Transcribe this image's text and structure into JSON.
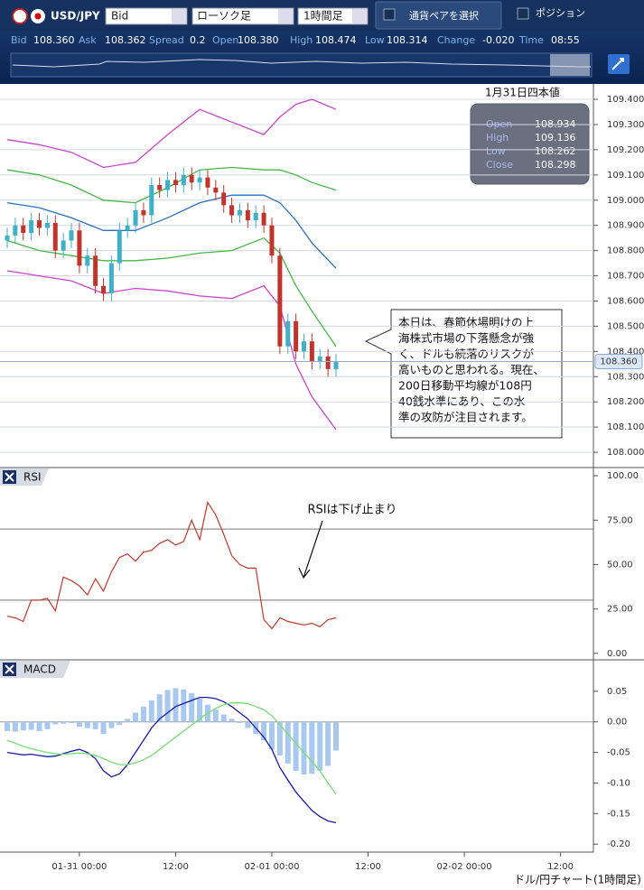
{
  "toolbar": {
    "pair": "USD/JPY",
    "price_type": "Bid",
    "chart_style": "ローソク足",
    "timeframe": "1時間足",
    "select_pair": "通貨ペアを選択",
    "position": "ポジション"
  },
  "quote": [
    {
      "label": "Bid",
      "value": "108.360"
    },
    {
      "label": "Ask",
      "value": "108.362"
    },
    {
      "label": "Spread",
      "value": "0.2"
    },
    {
      "label": "Open",
      "value": "108.380"
    },
    {
      "label": "High",
      "value": "108.474"
    },
    {
      "label": "Low",
      "value": "108.314"
    },
    {
      "label": "Change",
      "value": "-0.020"
    },
    {
      "label": "Time",
      "value": "08:55"
    }
  ],
  "ohlc_box": {
    "title": "1月31日四本値",
    "rows": [
      {
        "label": "Open",
        "value": "108.934"
      },
      {
        "label": "High",
        "value": "109.136"
      },
      {
        "label": "Low",
        "value": "108.262"
      },
      {
        "label": "Close",
        "value": "108.298"
      }
    ]
  },
  "annotation": {
    "lines": [
      "本日は、春節休場明けの上",
      "海株式市場の下落懸念が強",
      "く、ドルも続落のリスクが",
      "高いものと思われる。現在、",
      "200日移動平均線が108円",
      "40銭水準にあり、この水",
      "準の攻防が注目されます。"
    ]
  },
  "footer": "ドル/円チャート(1時間足)",
  "chart_data": [
    {
      "type": "candlestick",
      "grid": true,
      "xlim": [
        -9.9,
        64.1
      ],
      "ylim": [
        107.943,
        109.461
      ],
      "yticks": [
        {
          "value": 108.0,
          "label": "108.000"
        },
        {
          "value": 108.1,
          "label": "108.100"
        },
        {
          "value": 108.2,
          "label": "108.200"
        },
        {
          "value": 108.3,
          "label": "108.300"
        },
        {
          "value": 108.4,
          "label": "108.400"
        },
        {
          "value": 108.5,
          "label": "108.500"
        },
        {
          "value": 108.6,
          "label": "108.600"
        },
        {
          "value": 108.7,
          "label": "108.700"
        },
        {
          "value": 108.8,
          "label": "108.800"
        },
        {
          "value": 108.9,
          "label": "108.900"
        },
        {
          "value": 109.0,
          "label": "109.000"
        },
        {
          "value": 109.1,
          "label": "109.100"
        },
        {
          "value": 109.2,
          "label": "109.200"
        },
        {
          "value": 109.3,
          "label": "109.300"
        },
        {
          "value": 109.4,
          "label": "109.400"
        }
      ],
      "up_color": "#3fb0c8",
      "down_color": "#c0342c",
      "x": [
        -9,
        -8,
        -7,
        -6,
        -5,
        -4,
        -3,
        -2,
        -1,
        0,
        1,
        2,
        3,
        4,
        5,
        6,
        7,
        8,
        9,
        10,
        11,
        12,
        13,
        14,
        15,
        16,
        17,
        18,
        19,
        20,
        21,
        22,
        23,
        24,
        25,
        26,
        27,
        28,
        29,
        30,
        31,
        32
      ],
      "open": [
        108.84,
        108.86,
        108.9,
        108.87,
        108.92,
        108.89,
        108.91,
        108.8,
        108.84,
        108.88,
        108.74,
        108.78,
        108.66,
        108.63,
        108.75,
        108.88,
        108.9,
        108.96,
        108.94,
        109.06,
        109.04,
        109.08,
        109.06,
        109.1,
        109.07,
        109.09,
        109.05,
        109.03,
        108.98,
        108.94,
        108.96,
        108.92,
        108.95,
        108.9,
        108.78,
        108.42,
        108.52,
        108.4,
        108.44,
        108.36,
        108.38,
        108.33
      ],
      "high": [
        108.89,
        108.93,
        108.93,
        108.95,
        108.95,
        108.94,
        108.94,
        108.87,
        108.91,
        108.91,
        108.81,
        108.81,
        108.69,
        108.78,
        108.91,
        108.93,
        108.99,
        108.99,
        109.09,
        109.09,
        109.11,
        109.11,
        109.13,
        109.13,
        109.12,
        109.12,
        109.08,
        109.06,
        109.01,
        108.99,
        108.99,
        108.98,
        108.98,
        108.93,
        108.81,
        108.55,
        108.55,
        108.47,
        108.47,
        108.41,
        108.41,
        108.39
      ],
      "low": [
        108.81,
        108.83,
        108.84,
        108.84,
        108.86,
        108.86,
        108.77,
        108.77,
        108.81,
        108.71,
        108.71,
        108.63,
        108.6,
        108.6,
        108.72,
        108.85,
        108.87,
        108.91,
        108.91,
        109.01,
        109.01,
        109.03,
        109.03,
        109.04,
        109.04,
        109.02,
        109.0,
        108.95,
        108.91,
        108.91,
        108.89,
        108.89,
        108.87,
        108.75,
        108.39,
        108.39,
        108.37,
        108.37,
        108.33,
        108.33,
        108.3,
        108.3
      ],
      "close": [
        108.86,
        108.9,
        108.87,
        108.92,
        108.89,
        108.91,
        108.8,
        108.84,
        108.88,
        108.74,
        108.78,
        108.66,
        108.63,
        108.75,
        108.88,
        108.9,
        108.96,
        108.94,
        109.06,
        109.04,
        109.08,
        109.06,
        109.1,
        109.07,
        109.09,
        109.05,
        109.03,
        108.98,
        108.94,
        108.96,
        108.92,
        108.95,
        108.9,
        108.78,
        108.42,
        108.52,
        108.4,
        108.44,
        108.36,
        108.38,
        108.33,
        108.36
      ],
      "series": [
        {
          "color": "#cc44cc",
          "x": [
            -9,
            -5,
            -1,
            3,
            7,
            11,
            15,
            19,
            23,
            25,
            27,
            29,
            32
          ],
          "values": [
            109.24,
            109.22,
            109.19,
            109.13,
            109.15,
            109.26,
            109.36,
            109.31,
            109.26,
            109.33,
            109.38,
            109.4,
            109.36
          ]
        },
        {
          "color": "#44b844",
          "x": [
            -9,
            -5,
            -1,
            3,
            7,
            11,
            15,
            19,
            23,
            25,
            27,
            29,
            32
          ],
          "values": [
            109.12,
            109.1,
            109.06,
            109.0,
            108.99,
            109.05,
            109.12,
            109.13,
            109.12,
            109.12,
            109.1,
            109.07,
            109.04
          ]
        },
        {
          "color": "#2a6fc0",
          "x": [
            -9,
            -5,
            -1,
            3,
            7,
            11,
            15,
            19,
            23,
            25,
            27,
            29,
            32
          ],
          "values": [
            108.99,
            108.97,
            108.93,
            108.88,
            108.88,
            108.93,
            108.99,
            109.02,
            109.02,
            108.99,
            108.92,
            108.83,
            108.73
          ]
        },
        {
          "color": "#44b844",
          "x": [
            -9,
            -5,
            -1,
            3,
            7,
            11,
            15,
            19,
            23,
            25,
            27,
            29,
            32
          ],
          "values": [
            108.84,
            108.8,
            108.78,
            108.76,
            108.76,
            108.77,
            108.79,
            108.8,
            108.85,
            108.79,
            108.66,
            108.56,
            108.42
          ]
        },
        {
          "color": "#cc44cc",
          "x": [
            -9,
            -5,
            -1,
            3,
            7,
            11,
            15,
            19,
            23,
            25,
            27,
            29,
            32
          ],
          "values": [
            108.72,
            108.7,
            108.68,
            108.63,
            108.65,
            108.64,
            108.62,
            108.61,
            108.66,
            108.58,
            108.35,
            108.22,
            108.09
          ]
        }
      ],
      "price_line": {
        "value": 108.36,
        "label": "108.360"
      }
    },
    {
      "type": "line",
      "title": "RSI",
      "xlim": [
        -9.9,
        64.1
      ],
      "ylim": [
        -3.6,
        104.1
      ],
      "yticks": [
        {
          "value": 0,
          "label": "0.00"
        },
        {
          "value": 25,
          "label": "25.00"
        },
        {
          "value": 50,
          "label": "50.00"
        },
        {
          "value": 75,
          "label": "75.00"
        },
        {
          "value": 100,
          "label": "100.00"
        }
      ],
      "levels": [
        70,
        30
      ],
      "color": "#c0392b",
      "annotation": "RSIは下げ止まり",
      "x": [
        -9,
        -8,
        -7,
        -6,
        -5,
        -4,
        -3,
        -2,
        -1,
        0,
        1,
        2,
        3,
        4,
        5,
        6,
        7,
        8,
        9,
        10,
        11,
        12,
        13,
        14,
        15,
        16,
        17,
        18,
        19,
        20,
        21,
        22,
        23,
        24,
        25,
        26,
        27,
        28,
        29,
        30,
        31,
        32
      ],
      "values": [
        21,
        20,
        18,
        30,
        30,
        31,
        24,
        43,
        41,
        38,
        33,
        42,
        35,
        46,
        54,
        56,
        52,
        57,
        58,
        62,
        64,
        61,
        63,
        75,
        64,
        85,
        78,
        67,
        55,
        50,
        48,
        48,
        19,
        14,
        20,
        18,
        17,
        16,
        17,
        15,
        19,
        20
      ]
    },
    {
      "type": "macd",
      "title": "MACD",
      "xlim": [
        -9.9,
        64.1
      ],
      "ylim": [
        -0.213,
        0.1
      ],
      "zero_line": true,
      "yticks": [
        0.05,
        {
          "value": 0,
          "label": "0.00"
        },
        -0.05,
        {
          "value": -0.1,
          "label": "-0.10"
        },
        -0.15,
        {
          "value": -0.2,
          "label": "-0.20"
        }
      ],
      "xticks": [
        {
          "value": 0,
          "label": "01-31 00:00"
        },
        {
          "value": 12,
          "label": "12:00"
        },
        {
          "value": 24,
          "label": "02-01 00:00"
        },
        {
          "value": 36,
          "label": "12:00"
        },
        {
          "value": 48,
          "label": "02-02 00:00"
        },
        {
          "value": 60,
          "label": "12:00"
        }
      ],
      "x": [
        -9,
        -8,
        -7,
        -6,
        -5,
        -4,
        -3,
        -2,
        -1,
        0,
        1,
        2,
        3,
        4,
        5,
        6,
        7,
        8,
        9,
        10,
        11,
        12,
        13,
        14,
        15,
        16,
        17,
        18,
        19,
        20,
        21,
        22,
        23,
        24,
        25,
        26,
        27,
        28,
        29,
        30,
        31,
        32
      ],
      "histogram": {
        "color": "#a9c8f0",
        "values": [
          -0.015,
          -0.016,
          -0.014,
          -0.013,
          -0.015,
          -0.012,
          -0.004,
          -0.003,
          -0.002,
          -0.008,
          -0.01,
          -0.012,
          -0.02,
          -0.01,
          -0.005,
          0.005,
          0.015,
          0.025,
          0.035,
          0.045,
          0.052,
          0.055,
          0.053,
          0.047,
          0.038,
          0.028,
          0.02,
          0.012,
          0.005,
          -0.002,
          -0.01,
          -0.02,
          -0.03,
          -0.045,
          -0.055,
          -0.068,
          -0.08,
          -0.086,
          -0.085,
          -0.08,
          -0.072,
          -0.047
        ]
      },
      "series": [
        {
          "color": "#1a1aa8",
          "values": [
            -0.05,
            -0.052,
            -0.054,
            -0.053,
            -0.055,
            -0.057,
            -0.056,
            -0.052,
            -0.048,
            -0.045,
            -0.05,
            -0.06,
            -0.08,
            -0.09,
            -0.085,
            -0.07,
            -0.05,
            -0.03,
            -0.01,
            0.005,
            0.015,
            0.025,
            0.03,
            0.035,
            0.04,
            0.04,
            0.038,
            0.033,
            0.025,
            0.015,
            0.005,
            -0.01,
            -0.025,
            -0.045,
            -0.075,
            -0.095,
            -0.115,
            -0.13,
            -0.145,
            -0.155,
            -0.162,
            -0.165
          ]
        },
        {
          "color": "#77dd77",
          "values": [
            -0.03,
            -0.035,
            -0.04,
            -0.044,
            -0.047,
            -0.05,
            -0.052,
            -0.053,
            -0.052,
            -0.051,
            -0.052,
            -0.055,
            -0.06,
            -0.066,
            -0.07,
            -0.07,
            -0.067,
            -0.062,
            -0.055,
            -0.045,
            -0.035,
            -0.025,
            -0.015,
            -0.005,
            0.005,
            0.014,
            0.022,
            0.028,
            0.031,
            0.031,
            0.03,
            0.025,
            0.02,
            0.01,
            -0.005,
            -0.02,
            -0.035,
            -0.05,
            -0.065,
            -0.08,
            -0.1,
            -0.118
          ]
        }
      ]
    }
  ]
}
